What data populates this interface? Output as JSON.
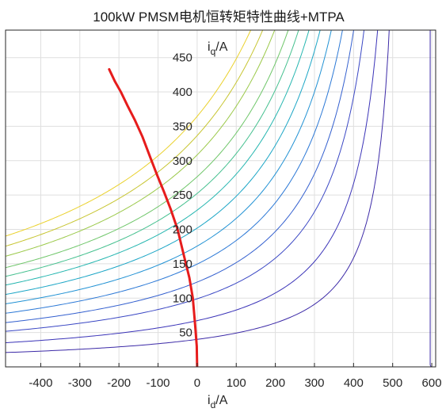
{
  "chart_data": {
    "type": "line",
    "title": "100kW PMSM电机恒转矩特性曲线+MTPA",
    "xlabel": {
      "main": "i",
      "sub": "d",
      "unit": "/A"
    },
    "ylabel": {
      "main": "i",
      "sub": "q",
      "unit": "/A"
    },
    "xlim": [
      -490,
      610
    ],
    "ylim": [
      0,
      490
    ],
    "xticks": [
      -400,
      -300,
      -200,
      -100,
      0,
      100,
      200,
      300,
      400,
      500,
      600
    ],
    "yticks": [
      50,
      100,
      150,
      200,
      250,
      300,
      350,
      400,
      450
    ],
    "grid": true,
    "torque_contours": {
      "model": "iq * (id - a) = c",
      "asymptote_id": 535,
      "c_values": [
        21400,
        36000,
        53000,
        66000,
        80000,
        94000,
        108000,
        122000,
        135000,
        148000,
        165000,
        180000,
        195000
      ],
      "colors": [
        "#3c2aa7",
        "#3b34b8",
        "#3a47c4",
        "#3460cf",
        "#2b78d6",
        "#2292d4",
        "#1ca6c6",
        "#26b6b0",
        "#45c08f",
        "#6fc66a",
        "#9bc94a",
        "#c7c531",
        "#ead12c"
      ]
    },
    "series": [
      {
        "name": "MTPA",
        "color": "#e61c1c",
        "x": [
          0,
          -1,
          -5,
          -11,
          -20,
          -33,
          -50,
          -68,
          -85,
          -103,
          -120,
          -140,
          -160,
          -178,
          -195,
          -210,
          -225
        ],
        "y": [
          0,
          30,
          60,
          100,
          130,
          160,
          200,
          230,
          255,
          280,
          305,
          335,
          360,
          380,
          400,
          415,
          433
        ]
      }
    ]
  }
}
